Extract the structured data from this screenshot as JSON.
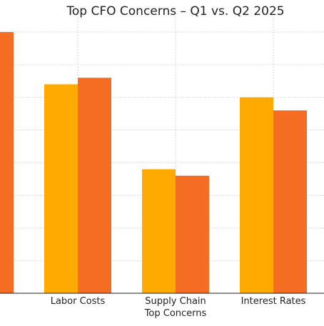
{
  "chart_data": {
    "type": "bar",
    "title": "Top CFO Concerns – Q1 vs. Q2 2025",
    "xlabel": "Top Concerns",
    "ylabel": "",
    "categories": [
      "",
      "Labor Costs",
      "Supply Chain",
      "Interest Rates"
    ],
    "series": [
      {
        "values": [
          null,
          64,
          38,
          60
        ]
      },
      {
        "values": [
          80,
          66,
          36,
          56
        ]
      }
    ],
    "ylim": [
      0,
      80
    ],
    "grid": true,
    "colors": {
      "series1": "#FFAA00",
      "series2": "#F46D22",
      "grid": "#cccccc",
      "axis": "#222222"
    }
  }
}
